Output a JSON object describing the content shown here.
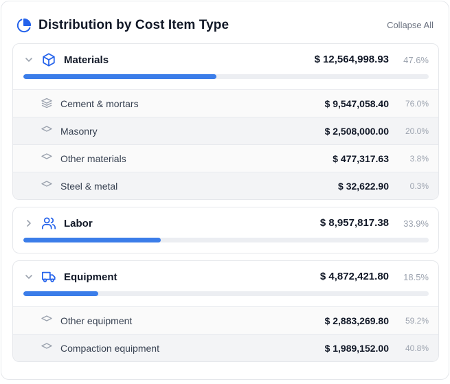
{
  "header": {
    "title": "Distribution by Cost Item Type",
    "collapse_label": "Collapse All"
  },
  "colors": {
    "accent": "#3b7de9",
    "track": "#eceef2",
    "icon_muted": "#9ca3af"
  },
  "groups": [
    {
      "name": "Materials",
      "icon": "cube-icon",
      "expanded": true,
      "amount": "$ 12,564,998.93",
      "percent": "47.6%",
      "share": 0.476,
      "items": [
        {
          "name": "Cement & mortars",
          "icon": "layers-icon",
          "amount": "$ 9,547,058.40",
          "percent": "76.0%"
        },
        {
          "name": "Masonry",
          "icon": "diamond-icon",
          "amount": "$ 2,508,000.00",
          "percent": "20.0%"
        },
        {
          "name": "Other materials",
          "icon": "diamond-icon",
          "amount": "$ 477,317.63",
          "percent": "3.8%"
        },
        {
          "name": "Steel & metal",
          "icon": "diamond-icon",
          "amount": "$ 32,622.90",
          "percent": "0.3%"
        }
      ]
    },
    {
      "name": "Labor",
      "icon": "users-icon",
      "expanded": false,
      "amount": "$ 8,957,817.38",
      "percent": "33.9%",
      "share": 0.339,
      "items": []
    },
    {
      "name": "Equipment",
      "icon": "truck-icon",
      "expanded": true,
      "amount": "$ 4,872,421.80",
      "percent": "18.5%",
      "share": 0.185,
      "items": [
        {
          "name": "Other equipment",
          "icon": "diamond-icon",
          "amount": "$ 2,883,269.80",
          "percent": "59.2%"
        },
        {
          "name": "Compaction equipment",
          "icon": "diamond-icon",
          "amount": "$ 1,989,152.00",
          "percent": "40.8%"
        }
      ]
    }
  ]
}
